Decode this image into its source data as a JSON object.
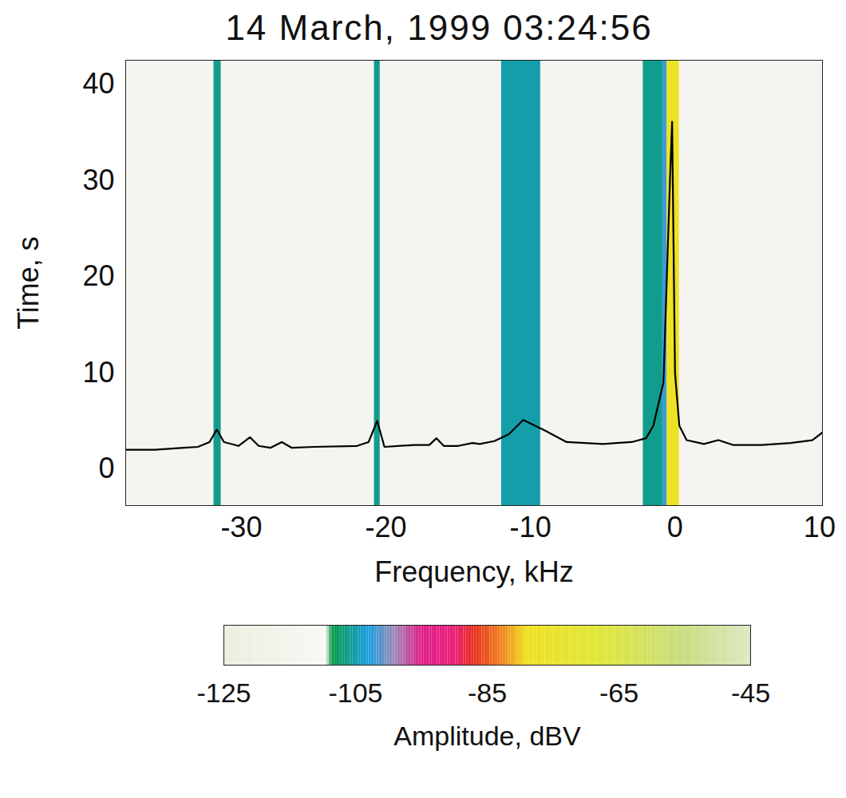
{
  "chart_data": {
    "type": "heatmap",
    "title": "14 March, 1999 03:24:56",
    "x_label": "Frequency, kHz",
    "y_label": "Time, s",
    "xlim": [
      -38,
      10.2
    ],
    "ylim": [
      -3.8,
      42.5
    ],
    "xticks": [
      -30,
      -20,
      -10,
      0,
      10
    ],
    "yticks": [
      0,
      10,
      20,
      30,
      40
    ],
    "bands": [
      {
        "frequency_start": -31.9,
        "frequency_end": -31.4,
        "amplitude": -106
      },
      {
        "frequency_start": -20.8,
        "frequency_end": -20.4,
        "amplitude": -106
      },
      {
        "frequency_start": -12.0,
        "frequency_end": -9.3,
        "amplitude": -105
      },
      {
        "frequency_start": -2.2,
        "frequency_end": -0.85,
        "amplitude": -106
      },
      {
        "frequency_start": -0.85,
        "frequency_end": -0.55,
        "amplitude": -102
      },
      {
        "frequency_start": -0.55,
        "frequency_end": 0.3,
        "amplitude": -76
      }
    ],
    "spectrum": {
      "color": "#000000",
      "x": [
        -38,
        -36,
        -34,
        -33,
        -32.2,
        -31.7,
        -31.2,
        -30.2,
        -29.4,
        -28.8,
        -28,
        -27.2,
        -26.5,
        -25,
        -22,
        -21.2,
        -20.6,
        -20.1,
        -18,
        -17,
        -16.5,
        -16,
        -15,
        -14,
        -13.5,
        -12.5,
        -11.5,
        -10.5,
        -9,
        -7.5,
        -5,
        -3,
        -2,
        -1.5,
        -0.8,
        -0.35,
        -0.2,
        0,
        0.3,
        0.8,
        2,
        3,
        4,
        6,
        8,
        9.5,
        10.2
      ],
      "values": [
        2.0,
        2.0,
        2.2,
        2.3,
        2.8,
        4.1,
        2.8,
        2.4,
        3.3,
        2.4,
        2.2,
        2.8,
        2.2,
        2.3,
        2.4,
        2.8,
        5.0,
        2.3,
        2.5,
        2.5,
        3.2,
        2.4,
        2.4,
        2.7,
        2.6,
        2.9,
        3.6,
        5.1,
        4.0,
        2.8,
        2.6,
        2.8,
        3.2,
        4.5,
        9.0,
        30.0,
        36.1,
        10.0,
        4.5,
        3.0,
        2.6,
        3.0,
        2.5,
        2.5,
        2.7,
        3.0,
        3.8
      ]
    },
    "colorbar": {
      "label": "Amplitude, dBV",
      "range": [
        -125,
        -45
      ],
      "ticks": [
        -125,
        -105,
        -85,
        -65,
        -45
      ]
    }
  }
}
